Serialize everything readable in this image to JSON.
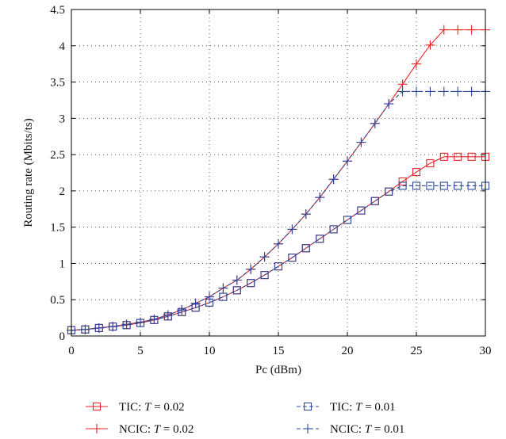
{
  "chart_data": {
    "type": "line",
    "title": "",
    "xlabel": "Pc (dBm)",
    "ylabel": "Routing rate (Mbits/ts)",
    "xlim": [
      0,
      30
    ],
    "ylim": [
      0,
      4.5
    ],
    "xticks": [
      0,
      5,
      10,
      15,
      20,
      25,
      30
    ],
    "yticks": [
      0,
      0.5,
      1,
      1.5,
      2,
      2.5,
      3,
      3.5,
      4,
      4.5
    ],
    "xtick_labels": [
      "0",
      "5",
      "10",
      "15",
      "20",
      "25",
      "30"
    ],
    "ytick_labels": [
      "0",
      "0.5",
      "1",
      "1.5",
      "2",
      "2.5",
      "3",
      "3.5",
      "4",
      "4.5"
    ],
    "grid": true,
    "legend_position": "bottom",
    "x": [
      0,
      1,
      2,
      3,
      4,
      5,
      6,
      7,
      8,
      9,
      10,
      11,
      12,
      13,
      14,
      15,
      16,
      17,
      18,
      19,
      20,
      21,
      22,
      23,
      24,
      25,
      26,
      27,
      28,
      29,
      30
    ],
    "series": [
      {
        "name": "TIC: T = 0.02",
        "legend_prefix": "TIC: ",
        "legend_var": "T",
        "legend_suffix": " = 0.02",
        "color": "#e8262a",
        "marker": "square",
        "line_style": "solid",
        "values": [
          0.08,
          0.09,
          0.11,
          0.13,
          0.15,
          0.18,
          0.22,
          0.27,
          0.33,
          0.39,
          0.46,
          0.54,
          0.63,
          0.73,
          0.84,
          0.96,
          1.08,
          1.21,
          1.34,
          1.47,
          1.6,
          1.73,
          1.86,
          1.99,
          2.13,
          2.26,
          2.38,
          2.47,
          2.47,
          2.47,
          2.47
        ]
      },
      {
        "name": "NCIC: T = 0.02",
        "legend_prefix": "NCIC: ",
        "legend_var": "T",
        "legend_suffix": " = 0.02",
        "color": "#e8262a",
        "marker": "plus",
        "line_style": "solid",
        "values": [
          0.08,
          0.09,
          0.11,
          0.13,
          0.16,
          0.19,
          0.23,
          0.29,
          0.36,
          0.45,
          0.54,
          0.66,
          0.77,
          0.92,
          1.09,
          1.27,
          1.47,
          1.68,
          1.91,
          2.16,
          2.41,
          2.67,
          2.93,
          3.2,
          3.47,
          3.75,
          4.01,
          4.22,
          4.22,
          4.22,
          4.22
        ]
      },
      {
        "name": "TIC: T = 0.01",
        "legend_prefix": "TIC: ",
        "legend_var": "T",
        "legend_suffix": " = 0.01",
        "color": "#2e4a9c",
        "marker": "square",
        "line_style": "dashed",
        "values": [
          0.08,
          0.09,
          0.11,
          0.13,
          0.15,
          0.18,
          0.22,
          0.27,
          0.33,
          0.39,
          0.46,
          0.54,
          0.63,
          0.73,
          0.84,
          0.96,
          1.08,
          1.21,
          1.34,
          1.47,
          1.6,
          1.73,
          1.86,
          1.99,
          2.07,
          2.07,
          2.07,
          2.07,
          2.07,
          2.07,
          2.07
        ]
      },
      {
        "name": "NCIC: T = 0.01",
        "legend_prefix": "NCIC: ",
        "legend_var": "T",
        "legend_suffix": " = 0.01",
        "color": "#2e4a9c",
        "marker": "plus",
        "line_style": "dashed",
        "values": [
          0.08,
          0.09,
          0.11,
          0.13,
          0.16,
          0.19,
          0.23,
          0.29,
          0.36,
          0.45,
          0.54,
          0.66,
          0.77,
          0.92,
          1.09,
          1.27,
          1.47,
          1.68,
          1.91,
          2.16,
          2.41,
          2.67,
          2.93,
          3.2,
          3.37,
          3.37,
          3.37,
          3.37,
          3.37,
          3.37,
          3.37
        ]
      }
    ]
  }
}
